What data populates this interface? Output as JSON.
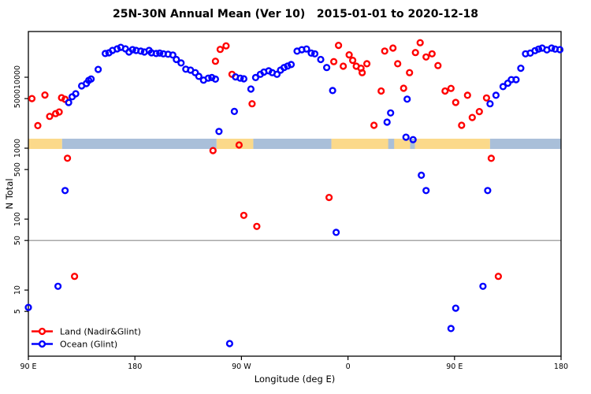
{
  "title": "25N-30N Annual Mean (Ver 10)   2015-01-01 to 2020-12-18",
  "chart_data": {
    "type": "scatter",
    "title": "25N-30N Annual Mean (Ver 10)   2015-01-01 to 2020-12-18",
    "xlabel": "Longitude (deg E)",
    "ylabel": "N Total",
    "grid": "off",
    "x_axis": {
      "min": 90,
      "max": 540,
      "note": "longitude axis wraps: values above 360 repeat eastern longitudes",
      "ticks": [
        {
          "value": 90,
          "label": "90 E"
        },
        {
          "value": 180,
          "label": "180"
        },
        {
          "value": 270,
          "label": "90 W"
        },
        {
          "value": 360,
          "label": "0"
        },
        {
          "value": 450,
          "label": "90 E"
        },
        {
          "value": 540,
          "label": "180"
        }
      ]
    },
    "y_axis": {
      "scale": "log",
      "min": 1.17,
      "max": 44100,
      "ticks": [
        {
          "value": 5,
          "label": "5"
        },
        {
          "value": 10,
          "label": "10"
        },
        {
          "value": 50,
          "label": "50"
        },
        {
          "value": 100,
          "label": "100"
        },
        {
          "value": 500,
          "label": "500"
        },
        {
          "value": 1000,
          "label": "1000"
        },
        {
          "value": 5000,
          "label": "5000"
        },
        {
          "value": 10000,
          "label": "10000"
        }
      ]
    },
    "reference_line": {
      "y": 50,
      "color": "#8c8c8c"
    },
    "surface_band": {
      "n_bottom": 975,
      "n_top": 1360,
      "land_color": "#fbd98a",
      "ocean_color": "#a9bfd9",
      "segments": [
        {
          "from": 90,
          "to": 118.5,
          "type": "land"
        },
        {
          "from": 118.5,
          "to": 249,
          "type": "ocean"
        },
        {
          "from": 249,
          "to": 280,
          "type": "land"
        },
        {
          "from": 280,
          "to": 346,
          "type": "ocean"
        },
        {
          "from": 346,
          "to": 480,
          "type": "land"
        },
        {
          "from": 480,
          "to": 540,
          "type": "ocean"
        }
      ],
      "flecks": [
        {
          "from": 394,
          "to": 399,
          "type": "ocean"
        },
        {
          "from": 412.5,
          "to": 416.5,
          "type": "ocean"
        }
      ]
    },
    "series": [
      {
        "name": "Land (Nadir&Glint)",
        "color": "#ff0000",
        "points": [
          [
            93,
            5000
          ],
          [
            104,
            5620
          ],
          [
            98,
            2080
          ],
          [
            108,
            2810
          ],
          [
            113,
            3070
          ],
          [
            116,
            3240
          ],
          [
            118,
            5140
          ],
          [
            121,
            4890
          ],
          [
            123,
            721
          ],
          [
            129,
            15.6
          ],
          [
            248,
            16800
          ],
          [
            252,
            24700
          ],
          [
            257,
            27700
          ],
          [
            262,
            11000
          ],
          [
            279,
            4230
          ],
          [
            246,
            925
          ],
          [
            268,
            1110
          ],
          [
            272,
            113
          ],
          [
            283,
            79
          ],
          [
            344,
            202
          ],
          [
            348,
            16600
          ],
          [
            352,
            28100
          ],
          [
            356,
            14300
          ],
          [
            361,
            20700
          ],
          [
            364,
            17300
          ],
          [
            367,
            14300
          ],
          [
            371,
            13400
          ],
          [
            372,
            11600
          ],
          [
            376,
            15500
          ],
          [
            382,
            2100
          ],
          [
            388,
            6400
          ],
          [
            391,
            23400
          ],
          [
            398,
            25800
          ],
          [
            402,
            15500
          ],
          [
            407,
            7000
          ],
          [
            412,
            11600
          ],
          [
            417,
            22300
          ],
          [
            421,
            30700
          ],
          [
            426,
            19300
          ],
          [
            431,
            21400
          ],
          [
            436,
            14600
          ],
          [
            442,
            6400
          ],
          [
            447,
            6960
          ],
          [
            451,
            4410
          ],
          [
            456,
            2100
          ],
          [
            461,
            5570
          ],
          [
            465,
            2710
          ],
          [
            471,
            3280
          ],
          [
            477,
            5100
          ],
          [
            481,
            720
          ],
          [
            487,
            15.6
          ]
        ]
      },
      {
        "name": "Ocean (Glint)",
        "color": "#0000ff",
        "points": [
          [
            124,
            4400
          ],
          [
            127,
            5300
          ],
          [
            130,
            5850
          ],
          [
            135,
            7550
          ],
          [
            139,
            8150
          ],
          [
            141,
            9030
          ],
          [
            143,
            9460
          ],
          [
            149,
            12900
          ],
          [
            155,
            21600
          ],
          [
            158,
            22100
          ],
          [
            161,
            23900
          ],
          [
            165,
            25100
          ],
          [
            168,
            26400
          ],
          [
            172,
            25100
          ],
          [
            175,
            22700
          ],
          [
            178,
            24500
          ],
          [
            181,
            23900
          ],
          [
            185,
            23300
          ],
          [
            188,
            22700
          ],
          [
            192,
            23900
          ],
          [
            194,
            22100
          ],
          [
            198,
            21600
          ],
          [
            201,
            21900
          ],
          [
            204,
            21400
          ],
          [
            208,
            21100
          ],
          [
            212,
            20600
          ],
          [
            215,
            17800
          ],
          [
            219,
            15900
          ],
          [
            223,
            13000
          ],
          [
            227,
            12600
          ],
          [
            231,
            11600
          ],
          [
            234,
            10300
          ],
          [
            238,
            9100
          ],
          [
            242,
            9700
          ],
          [
            245,
            9900
          ],
          [
            248,
            9400
          ],
          [
            251,
            1720
          ],
          [
            264,
            3300
          ],
          [
            265,
            10100
          ],
          [
            269,
            9700
          ],
          [
            272,
            9500
          ],
          [
            278,
            6820
          ],
          [
            282,
            9900
          ],
          [
            286,
            11000
          ],
          [
            289,
            11800
          ],
          [
            293,
            12300
          ],
          [
            296,
            11600
          ],
          [
            300,
            11000
          ],
          [
            303,
            12600
          ],
          [
            306,
            13700
          ],
          [
            309,
            14400
          ],
          [
            312,
            15100
          ],
          [
            317,
            23300
          ],
          [
            321,
            24400
          ],
          [
            325,
            25000
          ],
          [
            329,
            21900
          ],
          [
            332,
            21400
          ],
          [
            337,
            17800
          ],
          [
            342,
            13700
          ],
          [
            347,
            6500
          ],
          [
            350,
            65
          ],
          [
            393,
            2330
          ],
          [
            396,
            3140
          ],
          [
            409,
            1430
          ],
          [
            410,
            4920
          ],
          [
            415,
            1320
          ],
          [
            422,
            415
          ],
          [
            426,
            253
          ],
          [
            121,
            253
          ],
          [
            478,
            253
          ],
          [
            480,
            4230
          ],
          [
            485,
            5570
          ],
          [
            491,
            7380
          ],
          [
            495,
            8230
          ],
          [
            498,
            9250
          ],
          [
            502,
            9250
          ],
          [
            506,
            13400
          ],
          [
            510,
            21400
          ],
          [
            514,
            21900
          ],
          [
            518,
            23700
          ],
          [
            521,
            24900
          ],
          [
            524,
            25800
          ],
          [
            528,
            24300
          ],
          [
            532,
            25800
          ],
          [
            535,
            24900
          ],
          [
            539,
            24500
          ],
          [
            115,
            11.3
          ],
          [
            90,
            5.7
          ],
          [
            260,
            1.76
          ],
          [
            447,
            2.87
          ],
          [
            451,
            5.55
          ],
          [
            474,
            11.3
          ]
        ]
      }
    ],
    "legend": {
      "position": "bottom-left",
      "items": [
        "Land (Nadir&Glint)",
        "Ocean (Glint)"
      ]
    },
    "marker": {
      "shape": "open-circle",
      "radius": 3.4,
      "stroke_width": 2.4
    }
  }
}
